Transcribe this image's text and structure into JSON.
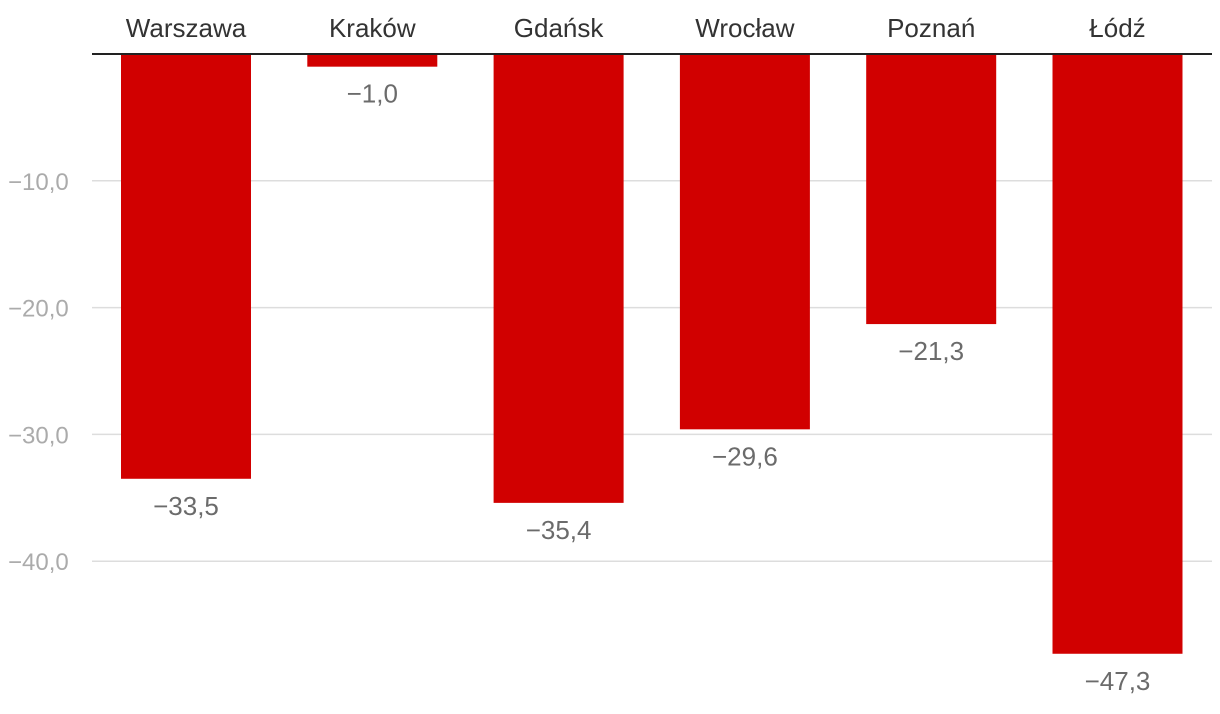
{
  "chart_data": {
    "type": "bar",
    "categories": [
      "Warszawa",
      "Kraków",
      "Gdańsk",
      "Wrocław",
      "Poznań",
      "Łódź"
    ],
    "values": [
      -33.5,
      -1.0,
      -35.4,
      -29.6,
      -21.3,
      -47.3
    ],
    "value_labels": [
      "−33,5",
      "−1,0",
      "−35,4",
      "−29,6",
      "−21,3",
      "−47,3"
    ],
    "y_ticks": [
      -10,
      -20,
      -30,
      -40
    ],
    "y_tick_labels": [
      "−10,0",
      "−20,0",
      "−30,0",
      "−40,0"
    ],
    "ylim": [
      -48,
      0
    ],
    "grid": true,
    "legend": "none",
    "title": "",
    "xlabel": "",
    "ylabel": "",
    "colors": {
      "bar": "#d10000",
      "grid": "#dddddd",
      "axis": "#222222",
      "tick_label": "#ababab",
      "category_label": "#333333",
      "value_label": "#6b6b6b"
    }
  }
}
